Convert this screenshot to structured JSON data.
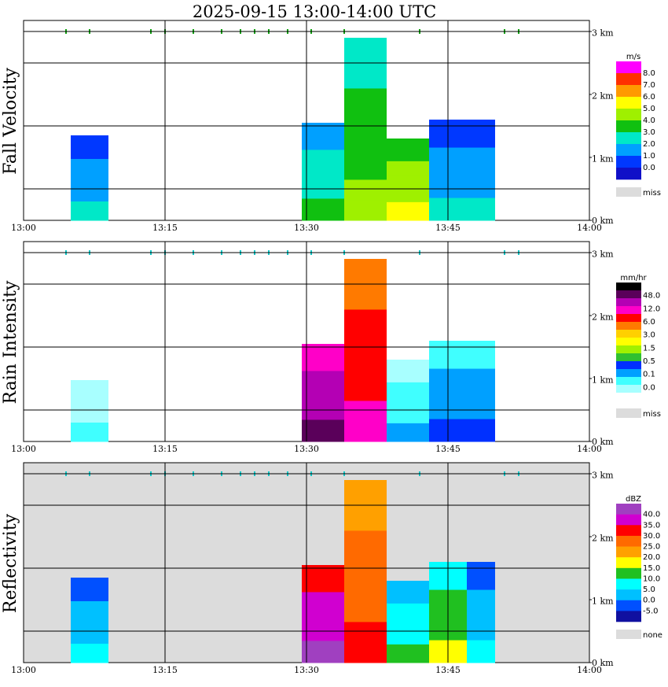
{
  "title": "2025-09-15  13:00-14:00 UTC",
  "chart_data": [
    {
      "type": "heatmap",
      "panel": "fall_velocity",
      "ylabel": "Fall Velocity",
      "xlim": [
        "13:00",
        "14:00"
      ],
      "ylim_km": [
        0,
        3
      ],
      "x_ticks": [
        "13:00",
        "13:15",
        "13:30",
        "13:45",
        "14:00"
      ],
      "y_ticks": [
        "0 km",
        "1 km",
        "2 km",
        "3 km"
      ],
      "background": "#ffffff",
      "grid": true,
      "legend": {
        "unit": "m/s",
        "levels": [
          "8.0",
          "7.0",
          "6.0",
          "5.0",
          "4.0",
          "3.0",
          "2.0",
          "1.0",
          "0.0"
        ],
        "colors": [
          "#ff00ff",
          "#ff3000",
          "#ff9a00",
          "#ffff00",
          "#9ff000",
          "#10c010",
          "#00e8c8",
          "#00a0ff",
          "#0038ff",
          "#1010c8"
        ],
        "missing_label": "miss",
        "missing_color": "#dcdcdc"
      },
      "echoes": [
        {
          "t0": 5.0,
          "t1": 9.0,
          "top_km": 1.35,
          "color_index": 7
        },
        {
          "t0": 29.5,
          "t1": 34.0,
          "top_km": 1.55,
          "color_index": 6
        },
        {
          "t0": 34.0,
          "t1": 38.5,
          "top_km": 2.9,
          "color_index": 5
        },
        {
          "t0": 38.5,
          "t1": 43.0,
          "top_km": 1.3,
          "color_index": 4
        },
        {
          "t0": 43.0,
          "t1": 47.0,
          "top_km": 1.6,
          "color_index": 7
        },
        {
          "t0": 47.0,
          "t1": 50.0,
          "top_km": 1.6,
          "color_index": 7
        }
      ],
      "ticks_3km": [
        4.5,
        7,
        13.5,
        15,
        18,
        21,
        23,
        24.5,
        26,
        28,
        30.5,
        34,
        42,
        51,
        52.5
      ]
    },
    {
      "type": "heatmap",
      "panel": "rain_intensity",
      "ylabel": "Rain Intensity",
      "xlim": [
        "13:00",
        "14:00"
      ],
      "ylim_km": [
        0,
        3
      ],
      "x_ticks": [
        "13:00",
        "13:15",
        "13:30",
        "13:45",
        "14:00"
      ],
      "y_ticks": [
        "0 km",
        "1 km",
        "2 km",
        "3 km"
      ],
      "background": "#ffffff",
      "grid": true,
      "legend": {
        "unit": "mm/hr",
        "levels": [
          "48.0",
          "12.0",
          "6.0",
          "3.0",
          "1.5",
          "0.5",
          "0.1",
          "0.0"
        ],
        "colors": [
          "#000000",
          "#5a005a",
          "#b400b4",
          "#ff00c8",
          "#ff0000",
          "#ff7a00",
          "#ffd000",
          "#ffff00",
          "#a0f000",
          "#30c030",
          "#0030ff",
          "#00a0ff",
          "#40ffff",
          "#a8ffff",
          "#ffffff"
        ],
        "missing_label": "miss",
        "missing_color": "#dcdcdc"
      },
      "echoes": [
        {
          "t0": 5.0,
          "t1": 9.0,
          "top_km": 1.35,
          "color_index": 13
        },
        {
          "t0": 29.5,
          "t1": 34.0,
          "top_km": 1.55,
          "color_index": 2
        },
        {
          "t0": 34.0,
          "t1": 38.5,
          "top_km": 2.9,
          "color_index": 4
        },
        {
          "t0": 38.5,
          "t1": 43.0,
          "top_km": 1.3,
          "color_index": 12
        },
        {
          "t0": 43.0,
          "t1": 47.0,
          "top_km": 1.6,
          "color_index": 11
        },
        {
          "t0": 47.0,
          "t1": 50.0,
          "top_km": 1.6,
          "color_index": 11
        }
      ],
      "ticks_3km": [
        4.5,
        7,
        13.5,
        15,
        18,
        21,
        23,
        24.5,
        26,
        28,
        30.5,
        34,
        42,
        51,
        52.5
      ]
    },
    {
      "type": "heatmap",
      "panel": "reflectivity",
      "ylabel": "Reflectivity",
      "xlim": [
        "13:00",
        "14:00"
      ],
      "ylim_km": [
        0,
        3
      ],
      "x_ticks": [
        "13:00",
        "13:15",
        "13:30",
        "13:45",
        "14:00"
      ],
      "y_ticks": [
        "0 km",
        "1 km",
        "2 km",
        "3 km"
      ],
      "background": "#dcdcdc",
      "grid": true,
      "legend": {
        "unit": "dBZ",
        "levels": [
          "40.0",
          "35.0",
          "30.0",
          "25.0",
          "20.0",
          "15.0",
          "10.0",
          "5.0",
          "0.0",
          "-5.0"
        ],
        "colors": [
          "#a040c0",
          "#d000d0",
          "#ff0000",
          "#ff6a00",
          "#ffa000",
          "#ffff00",
          "#20c020",
          "#00ffff",
          "#00c0ff",
          "#0050ff",
          "#1010a0"
        ],
        "missing_label": "none",
        "missing_color": "#dcdcdc"
      },
      "echoes": [
        {
          "t0": 5.0,
          "t1": 9.0,
          "top_km": 1.35,
          "color_index": 8
        },
        {
          "t0": 29.5,
          "t1": 34.0,
          "top_km": 1.55,
          "color_index": 1
        },
        {
          "t0": 34.0,
          "t1": 38.5,
          "top_km": 2.9,
          "color_index": 3
        },
        {
          "t0": 38.5,
          "t1": 43.0,
          "top_km": 1.3,
          "color_index": 7
        },
        {
          "t0": 43.0,
          "t1": 47.0,
          "top_km": 1.6,
          "color_index": 6
        },
        {
          "t0": 47.0,
          "t1": 50.0,
          "top_km": 1.6,
          "color_index": 8
        }
      ],
      "ticks_3km": [
        4.5,
        7,
        13.5,
        15,
        18,
        21,
        23,
        24.5,
        26,
        28,
        30.5,
        34,
        42,
        51,
        52.5
      ]
    }
  ]
}
